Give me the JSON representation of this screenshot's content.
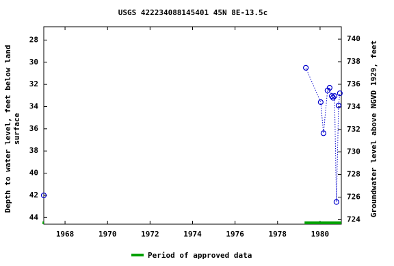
{
  "chart_data": {
    "type": "line",
    "title": "USGS 422234088145401 45N 8E-13.5c",
    "ylabel": [
      "Depth to water level, feet below land",
      "surface"
    ],
    "y2label": "Groundwater level above NGVD 1929, feet",
    "x": [
      1967.0,
      null,
      1979.33,
      1980.03,
      1980.16,
      1980.35,
      1980.45,
      1980.55,
      1980.61,
      1980.68,
      1980.77,
      1980.87,
      1980.93
    ],
    "series": [
      {
        "color": "#0000cc",
        "values": [
          42.0,
          null,
          30.5,
          33.6,
          36.4,
          32.55,
          32.3,
          33.05,
          33.2,
          33.05,
          42.6,
          33.9,
          32.8
        ]
      }
    ],
    "xlim": [
      1967.0,
      1981.0
    ],
    "xticks": [
      1968,
      1970,
      1972,
      1974,
      1976,
      1978,
      1980
    ],
    "ylim": [
      26.8,
      44.6
    ],
    "y_inverted": true,
    "yticks": [
      28,
      30,
      32,
      34,
      36,
      38,
      40,
      42,
      44
    ],
    "y2lim": [
      723.6,
      741.1
    ],
    "y2ticks": [
      724,
      726,
      728,
      730,
      732,
      734,
      736,
      738,
      740
    ],
    "approved_periods": [
      [
        1966.94,
        1967.0
      ],
      [
        1979.27,
        1981.0
      ]
    ],
    "approved_color": "#00a000",
    "legend": "Period of approved data",
    "grid": false
  }
}
